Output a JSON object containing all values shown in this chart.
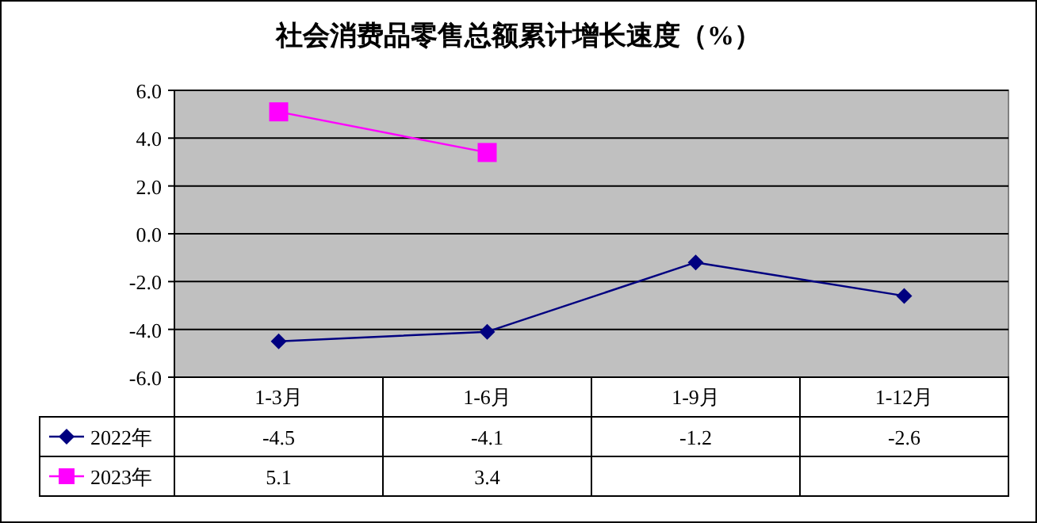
{
  "chart_data": {
    "type": "line",
    "title": "社会消费品零售总额累计增长速度（%）",
    "categories": [
      "1-3月",
      "1-6月",
      "1-9月",
      "1-12月"
    ],
    "series": [
      {
        "name": "2022年",
        "color": "#000080",
        "marker": "diamond",
        "values": [
          -4.5,
          -4.1,
          -1.2,
          -2.6
        ]
      },
      {
        "name": "2023年",
        "color": "#ff00ff",
        "marker": "square",
        "values": [
          5.1,
          3.4,
          null,
          null
        ]
      }
    ],
    "ylim": [
      -6,
      6
    ],
    "yticks": [
      {
        "value": -6,
        "label": "-6.0"
      },
      {
        "value": -4,
        "label": "-4.0"
      },
      {
        "value": -2,
        "label": "-2.0"
      },
      {
        "value": 0,
        "label": "0.0"
      },
      {
        "value": 2,
        "label": "2.0"
      },
      {
        "value": 4,
        "label": "4.0"
      },
      {
        "value": 6,
        "label": "6.0"
      }
    ],
    "grid": "y",
    "legend": "bottom",
    "data_labels": true
  }
}
